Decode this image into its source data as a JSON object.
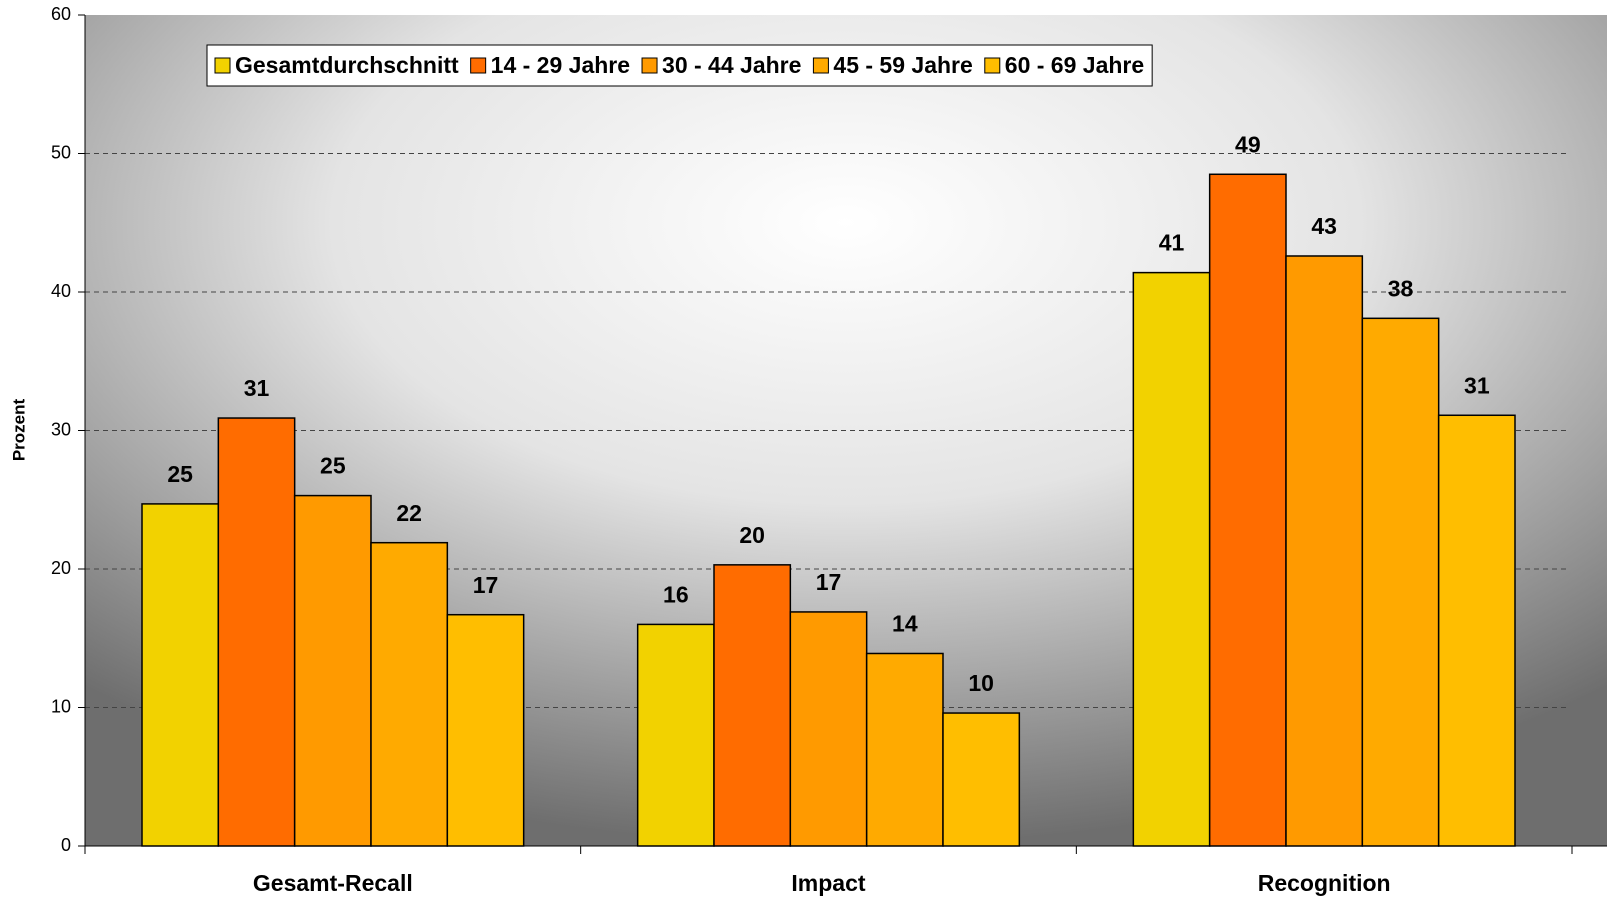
{
  "chart_data": {
    "type": "bar",
    "y_label": "Prozent",
    "categories": [
      "Gesamt-Recall",
      "Impact",
      "Recognition"
    ],
    "series": [
      {
        "name": "Gesamtdurchschnitt",
        "color": "#f2d200",
        "values": [
          24.7,
          16.0,
          41.4
        ],
        "value_labels": [
          "25",
          "16",
          "41"
        ]
      },
      {
        "name": "14 - 29 Jahre",
        "color": "#ff6c00",
        "values": [
          30.9,
          20.3,
          48.5
        ],
        "value_labels": [
          "31",
          "20",
          "49"
        ]
      },
      {
        "name": "30 - 44 Jahre",
        "color": "#ff9a00",
        "values": [
          25.3,
          16.9,
          42.6
        ],
        "value_labels": [
          "25",
          "17",
          "43"
        ]
      },
      {
        "name": "45 - 59 Jahre",
        "color": "#ffaa00",
        "values": [
          21.9,
          13.9,
          38.1
        ],
        "value_labels": [
          "22",
          "14",
          "38"
        ]
      },
      {
        "name": "60 - 69 Jahre",
        "color": "#ffbe00",
        "values": [
          16.7,
          9.6,
          31.1
        ],
        "value_labels": [
          "17",
          "10",
          "31"
        ]
      }
    ],
    "ylim": [
      0,
      60
    ],
    "yticks": [
      0,
      10,
      20,
      30,
      40,
      50,
      60
    ],
    "grid": true,
    "legend": "top-left"
  }
}
